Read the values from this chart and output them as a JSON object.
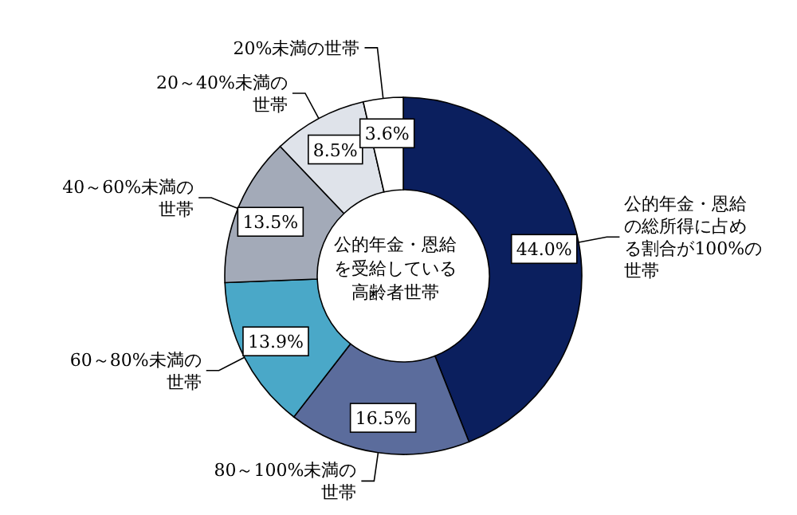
{
  "chart_data": {
    "type": "donut",
    "title": "公的年金・恩給を受給している高齢者世帯",
    "categories": [
      "公的年金・恩給の総所得に占める割合が100%の世帯",
      "80～100%未満の世帯",
      "60～80%未満の世帯",
      "40～60%未満の世帯",
      "20～40%未満の世帯",
      "20%未満の世帯"
    ],
    "values": [
      44.0,
      16.5,
      13.9,
      13.5,
      8.5,
      3.6
    ],
    "value_labels": [
      "44.0%",
      "16.5%",
      "13.9%",
      "13.5%",
      "8.5%",
      "3.6%"
    ],
    "colors": [
      "#0b1f5e",
      "#5b6c9c",
      "#4aa8c8",
      "#a3aab8",
      "#dfe3ea",
      "#ffffff"
    ]
  }
}
